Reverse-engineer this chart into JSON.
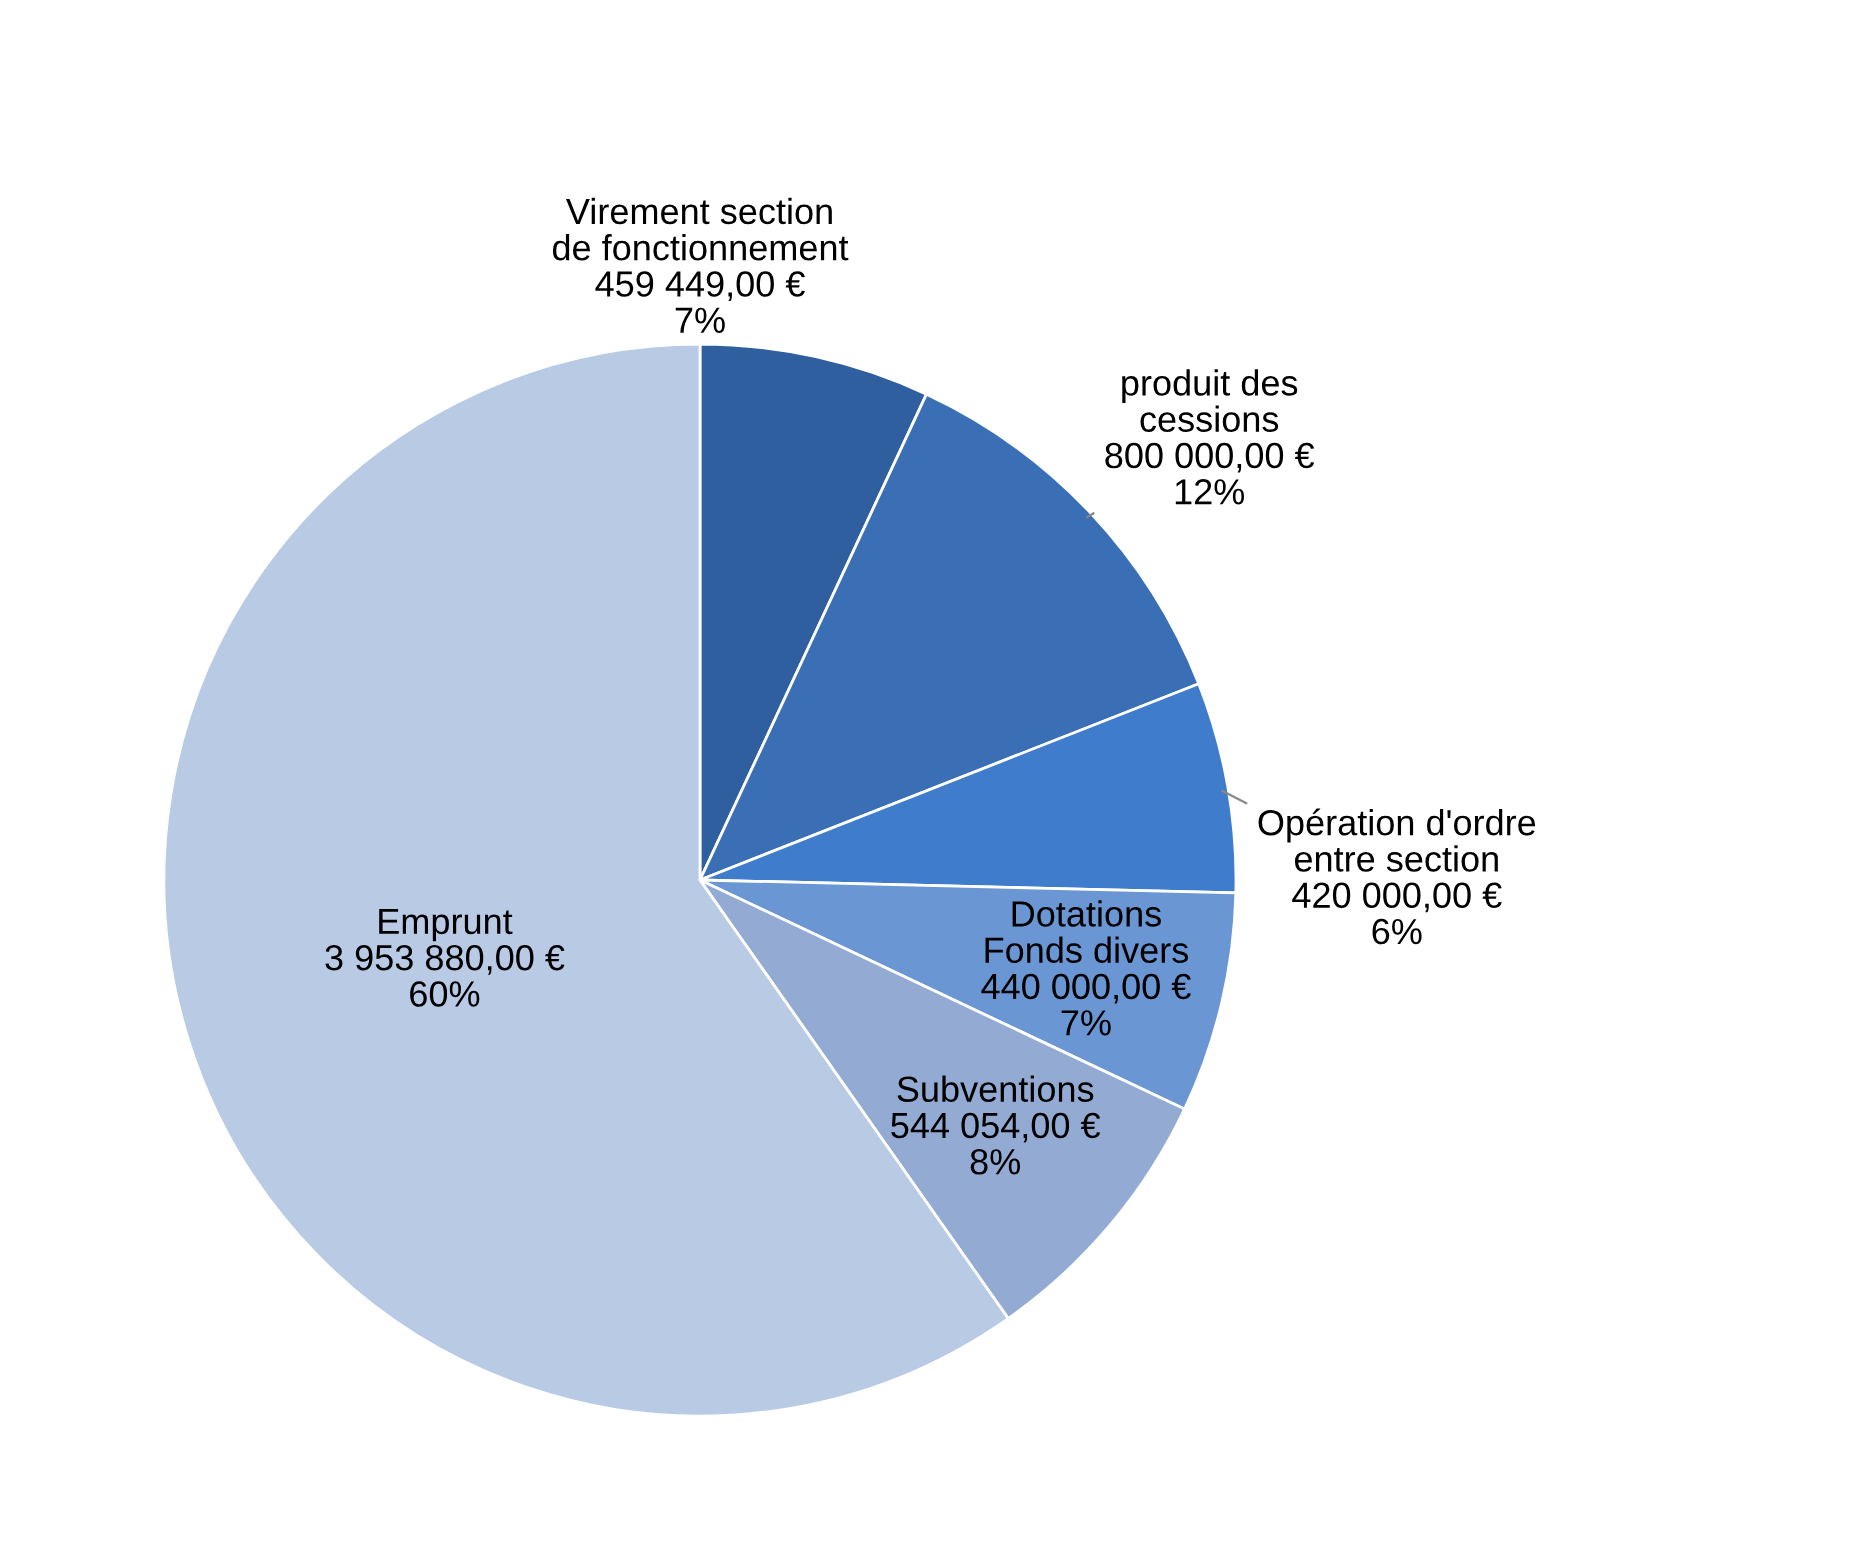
{
  "chart_data": {
    "type": "pie",
    "categories": [
      "Virement section de fonctionnement",
      "produit des cessions",
      "Opération d'ordre entre section",
      "Dotations Fonds divers",
      "Subventions",
      "Emprunt"
    ],
    "values": [
      459449,
      800000,
      420000,
      440000,
      544054,
      3953880
    ],
    "value_labels": [
      "459 449,00 €\n7%",
      "800 000,00 €\n12%",
      "420 000,00 €\n6%",
      "440 000,00 €\n7%",
      "544 054,00 €\n8%",
      "3 953 880,00 €\n60%"
    ],
    "colors": [
      "#2f5f9e",
      "#3a6fb5",
      "#3f7ccb",
      "#6b96d4",
      "#93abd3",
      "#b9cae5"
    ]
  }
}
